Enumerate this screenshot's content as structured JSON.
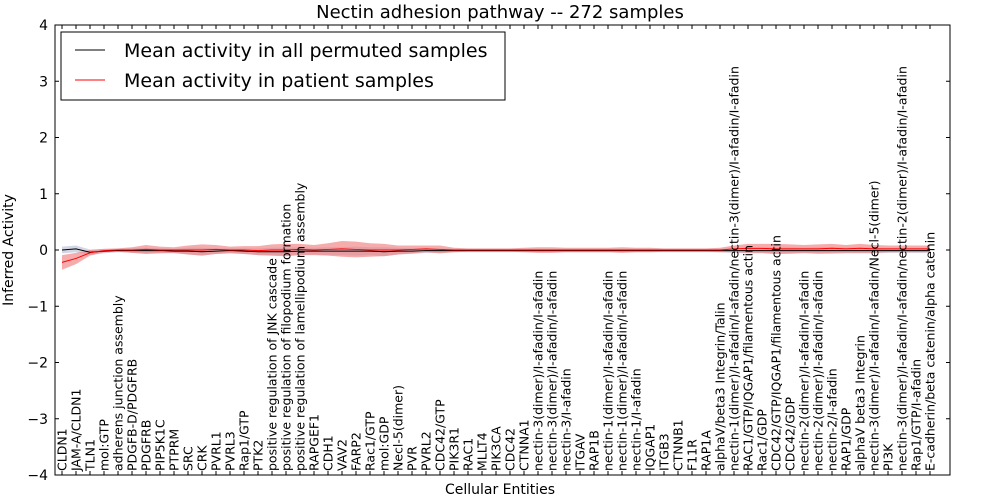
{
  "chart_data": {
    "type": "line",
    "title": "Nectin adhesion pathway -- 272 samples",
    "xlabel": "Cellular Entities",
    "ylabel": "Inferred Activity",
    "ylim": [
      -4,
      4
    ],
    "yticks": [
      4,
      3,
      2,
      1,
      0,
      -1,
      -2,
      -3,
      -4
    ],
    "ytick_labels": [
      "4",
      "3",
      "2",
      "1",
      "0",
      "−1",
      "−2",
      "−3",
      "−4"
    ],
    "legend_position": "top-left",
    "categories": [
      "CLDN1",
      "JAM-A/CLDN1",
      "TLN1",
      "mol:GTP",
      "adherens junction assembly",
      "PDGFB-D/PDGFRB",
      "PDGFRB",
      "PIP5K1C",
      "PTPRM",
      "SRC",
      "CRK",
      "PVRL1",
      "PVRL3",
      "Rap1/GTP",
      "PTK2",
      "positive regulation of JNK cascade",
      "positive regulation of filopodium formation",
      "positive regulation of lamellipodium assembly",
      "RAPGEF1",
      "CDH1",
      "VAV2",
      "FARP2",
      "Rac1/GTP",
      "mol:GDP",
      "Necl-5(dimer)",
      "PVR",
      "PVRL2",
      "CDC42/GTP",
      "PIK3R1",
      "RAC1",
      "MLLT4",
      "PIK3CA",
      "CDC42",
      "CTNNA1",
      "nectin-3(dimer)/I-afadin/I-afadin",
      "nectin-3(dimer)/I-afadin/I-afadin",
      "nectin-3/I-afadin",
      "ITGAV",
      "RAP1B",
      "nectin-1(dimer)/I-afadin/I-afadin",
      "nectin-1(dimer)/I-afadin/I-afadin",
      "nectin-1/I-afadin",
      "IQGAP1",
      "ITGB3",
      "CTNNB1",
      "F11R",
      "RAP1A",
      "alphaV/beta3 Integrin/Talin",
      "nectin-1(dimer)/I-afadin/I-afadin/nectin-3(dimer)/I-afadin/I-afadin",
      "RAC1/GTP/IQGAP1/filamentous actin",
      "Rac1/GDP",
      "CDC42/GTP/IQGAP1/filamentous actin",
      "CDC42/GDP",
      "nectin-2(dimer)/I-afadin/I-afadin",
      "nectin-2(dimer)/I-afadin/I-afadin",
      "nectin-2/I-afadin",
      "RAP1/GDP",
      "alphaV beta3 Integrin",
      "nectin-3(dimer)/I-afadin/I-afadin/Necl-5(dimer)",
      "PI3K",
      "nectin-3(dimer)/I-afadin/I-afadin/nectin-2(dimer)/I-afadin/I-afadin",
      "Rap1/GTP/I-afadin",
      "E-cadherin/beta catenin/alpha catenin"
    ],
    "series": [
      {
        "name": "Mean activity in all permuted samples",
        "color": "#000000",
        "band_color": "#c4c9dc",
        "values": [
          0.0,
          0.02,
          -0.04,
          -0.02,
          -0.01,
          -0.01,
          -0.01,
          -0.01,
          -0.02,
          -0.02,
          -0.03,
          -0.02,
          -0.01,
          -0.02,
          -0.03,
          -0.03,
          -0.03,
          -0.02,
          -0.02,
          -0.02,
          -0.02,
          -0.02,
          -0.02,
          -0.03,
          -0.02,
          -0.02,
          -0.01,
          -0.01,
          -0.01,
          -0.01,
          -0.01,
          -0.01,
          -0.01,
          -0.01,
          -0.01,
          -0.01,
          -0.01,
          -0.01,
          -0.01,
          -0.01,
          -0.01,
          -0.01,
          -0.01,
          -0.01,
          -0.01,
          -0.01,
          -0.01,
          -0.01,
          -0.01,
          -0.01,
          -0.01,
          -0.01,
          -0.01,
          -0.01,
          -0.01,
          -0.01,
          -0.01,
          -0.01,
          -0.01,
          -0.01,
          -0.01,
          -0.01,
          -0.01
        ],
        "band": [
          0.06,
          0.06,
          0.05,
          0.04,
          0.03,
          0.04,
          0.05,
          0.04,
          0.04,
          0.06,
          0.07,
          0.05,
          0.04,
          0.05,
          0.06,
          0.07,
          0.07,
          0.07,
          0.06,
          0.07,
          0.07,
          0.08,
          0.07,
          0.08,
          0.06,
          0.05,
          0.04,
          0.04,
          0.03,
          0.03,
          0.03,
          0.03,
          0.03,
          0.03,
          0.03,
          0.03,
          0.03,
          0.03,
          0.03,
          0.03,
          0.03,
          0.03,
          0.03,
          0.03,
          0.03,
          0.03,
          0.03,
          0.03,
          0.04,
          0.05,
          0.05,
          0.06,
          0.06,
          0.05,
          0.06,
          0.06,
          0.05,
          0.05,
          0.05,
          0.04,
          0.04,
          0.04,
          0.04
        ]
      },
      {
        "name": "Mean activity in patient samples",
        "color": "#ff0000",
        "band_color": "#f08080",
        "values": [
          -0.22,
          -0.15,
          -0.05,
          -0.01,
          0.0,
          0.0,
          0.01,
          0.0,
          0.0,
          0.0,
          0.0,
          0.01,
          0.0,
          0.0,
          -0.01,
          0.0,
          0.0,
          0.01,
          0.0,
          0.01,
          0.02,
          0.01,
          0.0,
          0.0,
          0.0,
          0.01,
          0.02,
          0.01,
          0.0,
          0.0,
          0.0,
          0.0,
          0.0,
          0.0,
          0.0,
          0.0,
          0.0,
          0.0,
          0.0,
          0.0,
          0.0,
          0.0,
          0.0,
          0.0,
          0.0,
          0.0,
          0.0,
          0.0,
          0.02,
          0.03,
          0.03,
          0.02,
          0.02,
          0.02,
          0.02,
          0.03,
          0.02,
          0.03,
          0.02,
          0.02,
          0.02,
          0.02,
          0.02
        ],
        "band": [
          0.13,
          0.1,
          0.05,
          0.03,
          0.03,
          0.05,
          0.08,
          0.06,
          0.05,
          0.08,
          0.1,
          0.08,
          0.06,
          0.07,
          0.08,
          0.1,
          0.11,
          0.1,
          0.09,
          0.11,
          0.14,
          0.14,
          0.12,
          0.11,
          0.08,
          0.07,
          0.06,
          0.07,
          0.04,
          0.03,
          0.03,
          0.03,
          0.03,
          0.04,
          0.05,
          0.05,
          0.04,
          0.04,
          0.04,
          0.04,
          0.05,
          0.04,
          0.04,
          0.03,
          0.03,
          0.03,
          0.03,
          0.04,
          0.06,
          0.08,
          0.08,
          0.09,
          0.08,
          0.07,
          0.08,
          0.08,
          0.07,
          0.08,
          0.07,
          0.06,
          0.06,
          0.06,
          0.06
        ]
      }
    ]
  }
}
